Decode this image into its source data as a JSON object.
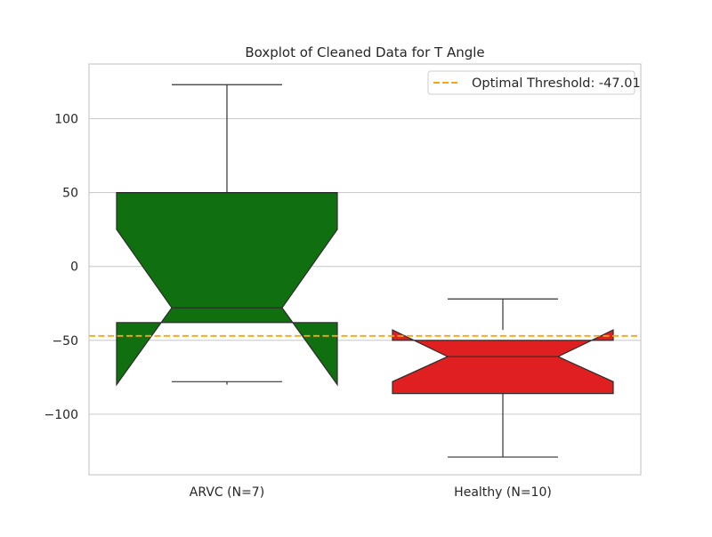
{
  "chart_data": {
    "type": "boxplot",
    "title": "Boxplot of Cleaned Data for T Angle",
    "xlabel": "",
    "ylabel": "",
    "ylim": [
      -141,
      137
    ],
    "yticks": [
      100,
      50,
      0,
      -50,
      -100
    ],
    "grid": true,
    "legend_position": "top-right",
    "categories": [
      "ARVC (N=7)",
      "Healthy (N=10)"
    ],
    "boxes": [
      {
        "category": "ARVC (N=7)",
        "color": "#107010",
        "whisker_low": -78,
        "q1": -38,
        "notch_low": -80,
        "median": -28,
        "notch_high": 25,
        "q3": 50,
        "whisker_high": 123
      },
      {
        "category": "Healthy (N=10)",
        "color": "#e02020",
        "whisker_low": -129,
        "q1": -86,
        "notch_low": -78,
        "median": -61,
        "notch_high": -43,
        "q3": -50,
        "whisker_high": -22
      }
    ],
    "reference_line": {
      "label": "Optimal Threshold: -47.01",
      "value": -47.01,
      "color": "#ffa500",
      "style": "dashed"
    }
  }
}
